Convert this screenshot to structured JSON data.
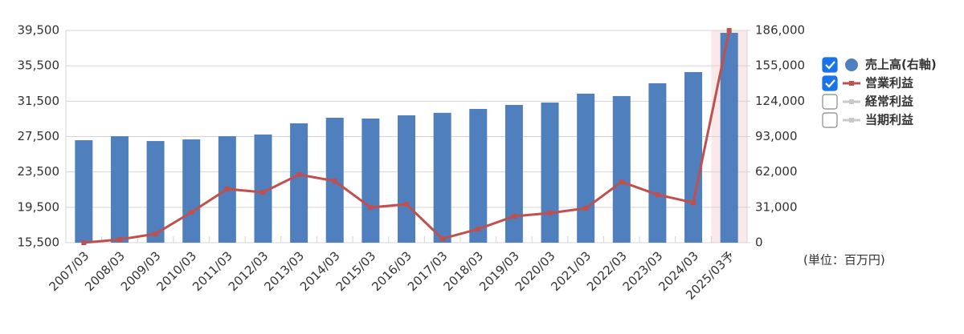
{
  "chart_data": {
    "type": "bar-line",
    "categories": [
      "2007/03",
      "2008/03",
      "2009/03",
      "2010/03",
      "2011/03",
      "2012/03",
      "2013/03",
      "2014/03",
      "2015/03",
      "2016/03",
      "2017/03",
      "2018/03",
      "2019/03",
      "2020/03",
      "2021/03",
      "2022/03",
      "2023/03",
      "2024/03",
      "2025/03予"
    ],
    "highlight_index": 18,
    "series": [
      {
        "name": "売上高(右軸)",
        "type": "bar",
        "axis": "y2",
        "color": "#4f7fbd",
        "checked": true,
        "values": [
          89800,
          93300,
          89100,
          90500,
          93300,
          94800,
          104600,
          109500,
          108800,
          111600,
          113800,
          117200,
          120700,
          122800,
          130600,
          128500,
          139700,
          149500,
          183900
        ]
      },
      {
        "name": "営業利益",
        "type": "line",
        "axis": "y",
        "color": "#c0504d",
        "checked": true,
        "values": [
          15500,
          15860,
          16500,
          18940,
          21570,
          21200,
          23200,
          22470,
          19480,
          19850,
          15950,
          17040,
          18490,
          18850,
          19390,
          22380,
          20930,
          20030,
          39500
        ]
      },
      {
        "name": "経常利益",
        "type": "line",
        "axis": "y",
        "color": "#c8c8c8",
        "checked": false,
        "values": [
          null,
          null,
          null,
          null,
          null,
          null,
          null,
          null,
          null,
          null,
          null,
          null,
          null,
          null,
          null,
          null,
          null,
          null,
          null
        ]
      },
      {
        "name": "当期利益",
        "type": "line",
        "axis": "y",
        "color": "#c8c8c8",
        "checked": false,
        "values": [
          null,
          null,
          null,
          null,
          null,
          null,
          null,
          null,
          null,
          null,
          null,
          null,
          null,
          null,
          null,
          null,
          null,
          null,
          null
        ]
      }
    ],
    "ylim": [
      15500,
      39500
    ],
    "yticks": [
      {
        "value": 15500,
        "label": "15,500"
      },
      {
        "value": 19500,
        "label": "19,500"
      },
      {
        "value": 23500,
        "label": "23,500"
      },
      {
        "value": 27500,
        "label": "27,500"
      },
      {
        "value": 31500,
        "label": "31,500"
      },
      {
        "value": 35500,
        "label": "35,500"
      },
      {
        "value": 39500,
        "label": "39,500"
      }
    ],
    "y2lim": [
      0,
      186000
    ],
    "y2ticks": [
      0,
      {
        "value": 31000,
        "label": "31,000"
      },
      {
        "value": 62000,
        "label": "62,000"
      },
      {
        "value": 93000,
        "label": "93,000"
      },
      {
        "value": 124000,
        "label": "124,000"
      },
      {
        "value": 155000,
        "label": "155,000"
      },
      {
        "value": 186000,
        "label": "186,000"
      }
    ],
    "unit_note": "(単位：百万円)",
    "grid": true
  }
}
